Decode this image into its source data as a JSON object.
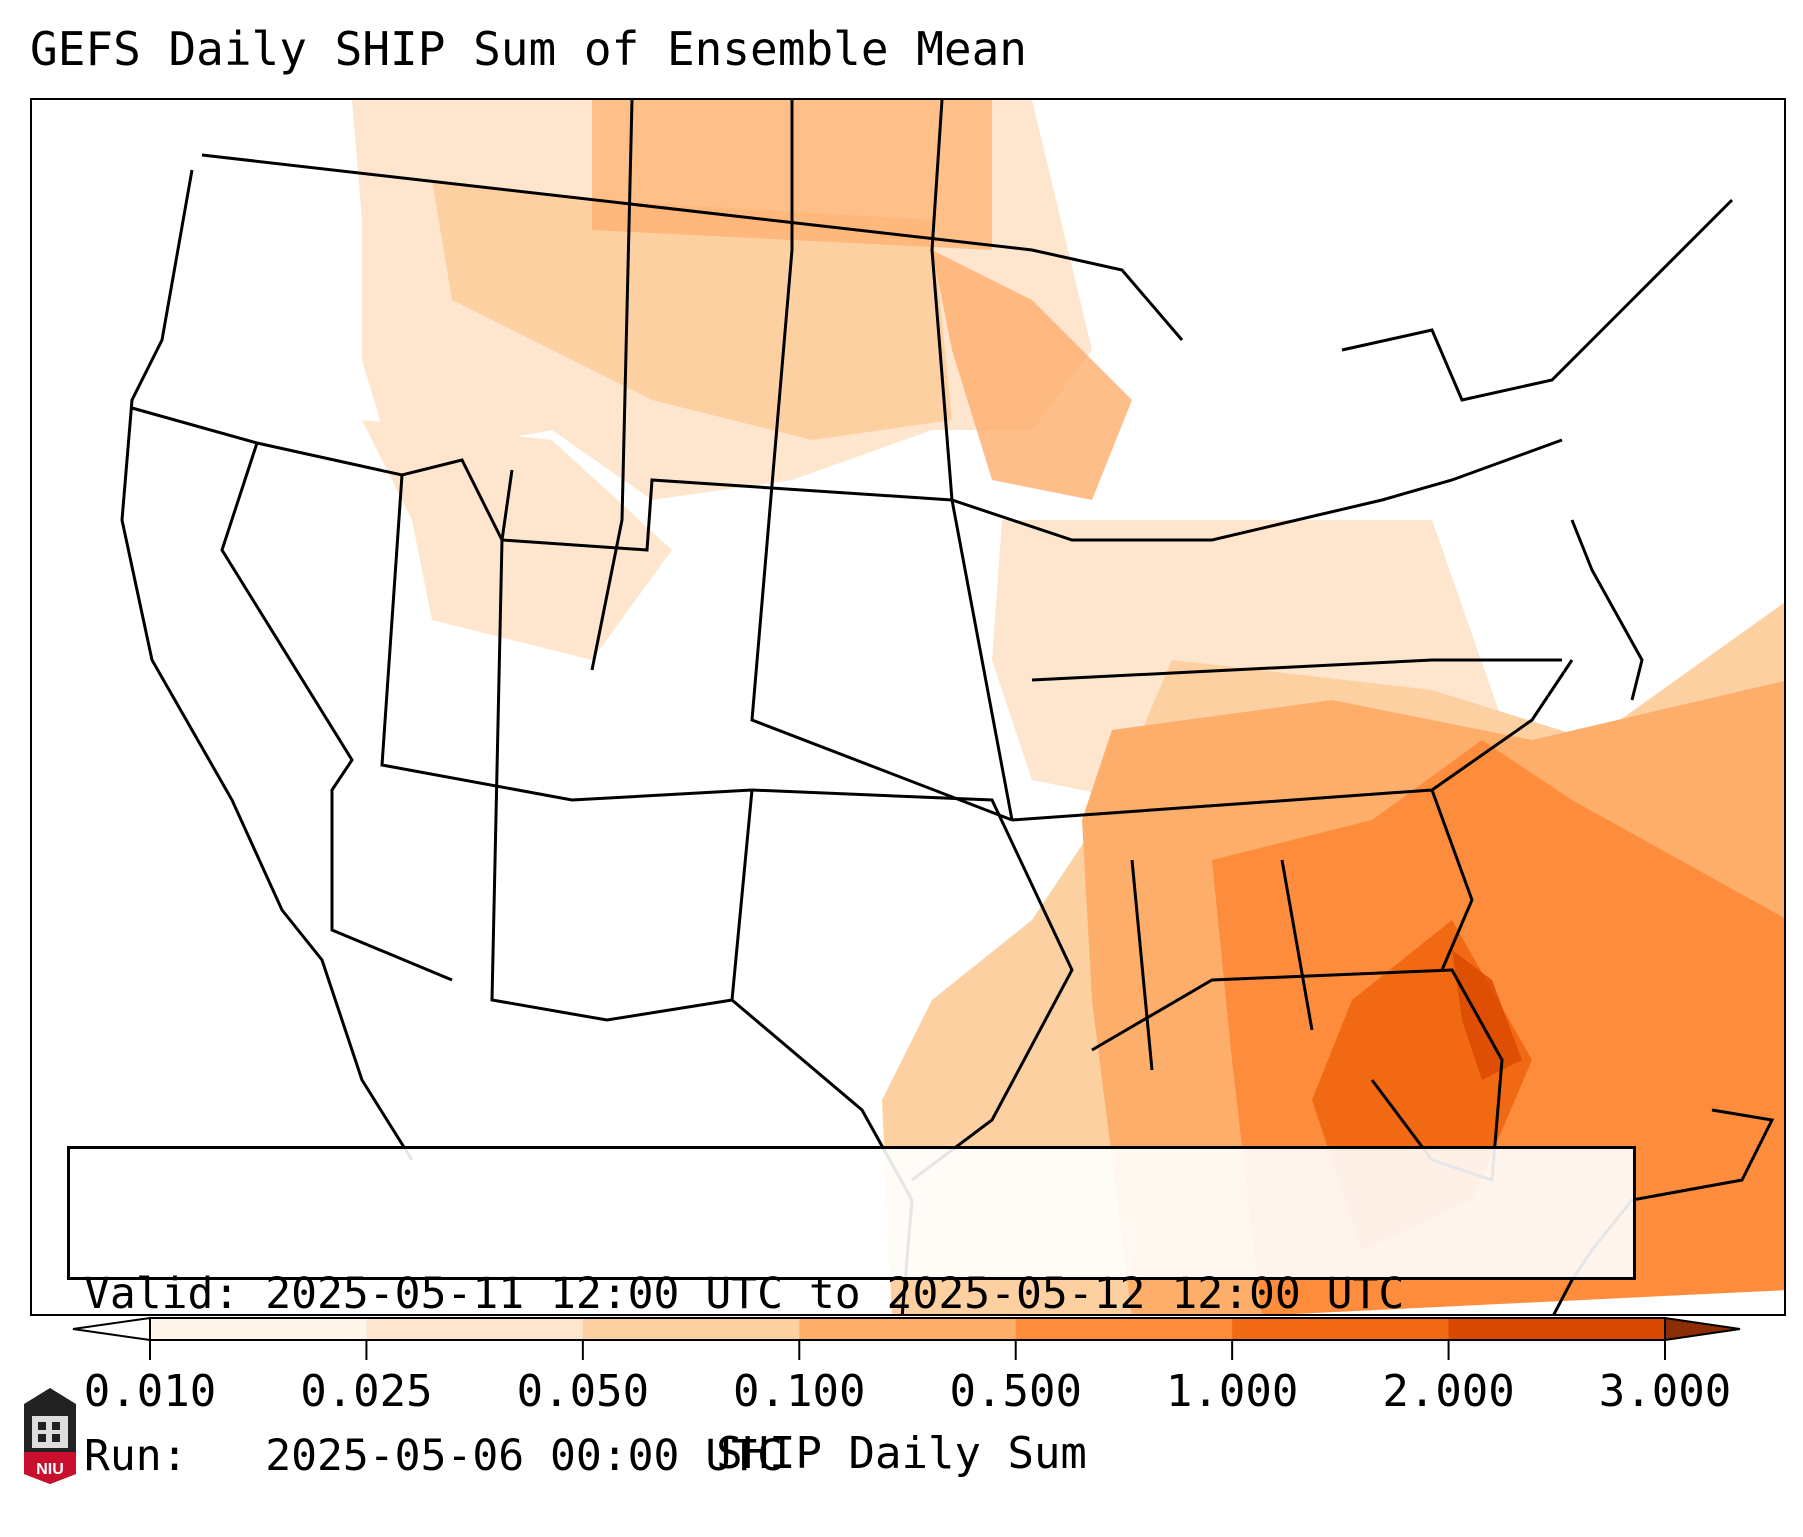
{
  "title": "GEFS Daily SHIP Sum of Ensemble Mean",
  "info": {
    "valid_label": "Valid:",
    "valid_value": "2025-05-11 12:00 UTC to 2025-05-12 12:00 UTC",
    "run_label": "Run:",
    "run_value": "2025-05-06 00:00 UTC"
  },
  "colorbar": {
    "label": "SHIP Daily Sum",
    "ticks": [
      "0.010",
      "0.025",
      "0.050",
      "0.100",
      "0.500",
      "1.000",
      "2.000",
      "3.000"
    ],
    "colors": [
      "#fff5eb",
      "#fee6ce",
      "#fdd0a2",
      "#fdae6b",
      "#fd8d3c",
      "#f16913",
      "#d94801"
    ],
    "under_color": "#ffffff",
    "over_color": "#8c2d04",
    "extend": "both"
  },
  "logo": {
    "text": "NIU"
  }
}
